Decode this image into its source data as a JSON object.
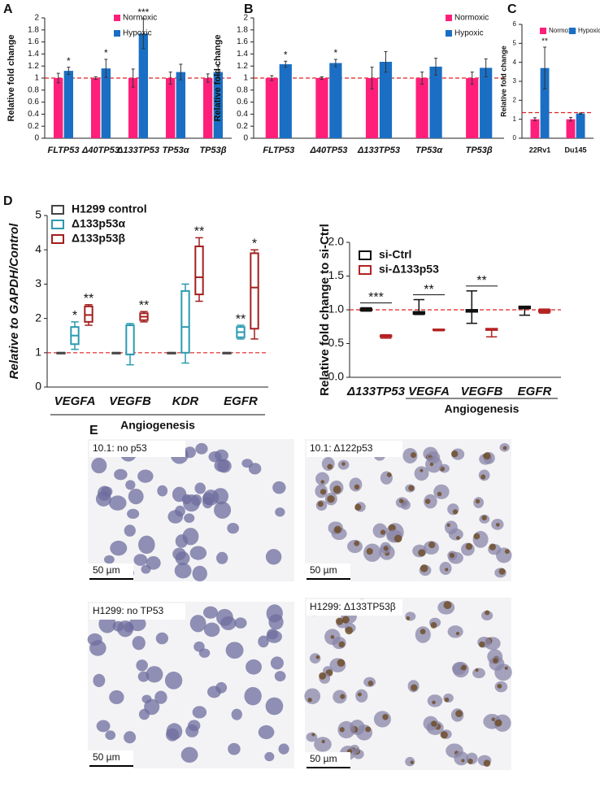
{
  "chart_data": [
    {
      "panel": "A",
      "type": "bar",
      "ylabel": "Relative fold change",
      "categories": [
        "FLTP53",
        "Δ40TP53",
        "Δ133TP53",
        "TP53α",
        "TP53β"
      ],
      "series": [
        {
          "name": "Normoxic",
          "color": "#ff1f7a",
          "values": [
            1,
            1,
            1,
            1,
            1
          ],
          "errors": [
            0.08,
            0.02,
            0.15,
            0.1,
            0.07
          ]
        },
        {
          "name": "Hypoxic",
          "color": "#1a6fc4",
          "values": [
            1.12,
            1.16,
            1.74,
            1.1,
            1.1
          ],
          "errors": [
            0.06,
            0.15,
            0.25,
            0.13,
            0.1
          ],
          "significance": [
            "*",
            "*",
            "***",
            null,
            null
          ]
        }
      ],
      "ylim": [
        0,
        2
      ],
      "yticks": [
        0,
        0.2,
        0.4,
        0.6,
        0.8,
        1,
        1.2,
        1.4,
        1.6,
        1.8,
        2
      ],
      "refline": 1
    },
    {
      "panel": "B",
      "type": "bar",
      "ylabel": "Relative fold change",
      "categories": [
        "FLTP53",
        "Δ40TP53",
        "Δ133TP53",
        "TP53α",
        "TP53β"
      ],
      "series": [
        {
          "name": "Normoxic",
          "color": "#ff1f7a",
          "values": [
            1,
            1,
            1,
            1,
            1
          ],
          "errors": [
            0.04,
            0.02,
            0.18,
            0.1,
            0.1
          ]
        },
        {
          "name": "Hypoxic",
          "color": "#1a6fc4",
          "values": [
            1.23,
            1.25,
            1.27,
            1.19,
            1.17
          ],
          "errors": [
            0.05,
            0.06,
            0.17,
            0.14,
            0.15
          ],
          "significance": [
            "*",
            "*",
            null,
            null,
            null
          ]
        }
      ],
      "ylim": [
        0,
        2
      ],
      "yticks": [
        0,
        0.2,
        0.4,
        0.6,
        0.8,
        1,
        1.2,
        1.4,
        1.6,
        1.8,
        2
      ],
      "refline": 1
    },
    {
      "panel": "C",
      "type": "bar",
      "ylabel": "Relative fold change",
      "categories": [
        "22Rv1",
        "Du145"
      ],
      "series": [
        {
          "name": "Normoxic",
          "color": "#ff1f7a",
          "values": [
            1,
            1
          ],
          "errors": [
            0.08,
            0.1
          ]
        },
        {
          "name": "Hypoxic",
          "color": "#1a6fc4",
          "values": [
            3.7,
            1.3
          ],
          "errors": [
            1.1,
            0.03
          ],
          "significance": [
            "**",
            null
          ]
        }
      ],
      "ylim": [
        0,
        6
      ],
      "yticks": [
        0,
        1,
        2,
        3,
        4,
        5,
        6
      ],
      "refline": 1.35
    },
    {
      "panel": "D",
      "type": "box",
      "ylabel": "Relative to GAPDH/Control",
      "group_label": "Angiogenesis",
      "categories": [
        "VEGFA",
        "VEGFB",
        "KDR",
        "EGFR"
      ],
      "series": [
        {
          "name": "H1299 control",
          "color": "#444444",
          "values": [
            [
              1,
              1,
              1,
              1,
              1
            ],
            [
              1,
              1,
              1,
              1,
              1
            ],
            [
              1,
              1,
              1,
              1,
              1
            ],
            [
              1,
              1,
              1,
              1,
              1
            ]
          ]
        },
        {
          "name": "Δ133p53α",
          "color": "#2a9bb0",
          "values": [
            [
              1.1,
              1.25,
              1.5,
              1.75,
              1.9
            ],
            [
              0.65,
              0.95,
              0.95,
              1.8,
              1.85
            ],
            [
              0.7,
              1.0,
              1.75,
              2.8,
              3.0
            ],
            [
              1.4,
              1.45,
              1.6,
              1.75,
              1.8
            ]
          ],
          "significance": [
            "*",
            null,
            null,
            "**"
          ]
        },
        {
          "name": "Δ133p53β",
          "color": "#a31f1f",
          "values": [
            [
              1.8,
              1.9,
              2.1,
              2.35,
              2.4
            ],
            [
              1.9,
              1.95,
              2.05,
              2.15,
              2.2
            ],
            [
              2.5,
              2.7,
              3.2,
              4.1,
              4.35
            ],
            [
              1.4,
              1.7,
              2.9,
              3.9,
              4.0
            ]
          ],
          "significance": [
            "**",
            "**",
            "**",
            "*"
          ]
        }
      ],
      "ylim": [
        0,
        5
      ],
      "yticks": [
        0,
        1,
        2,
        3,
        4,
        5
      ],
      "refline": 1
    },
    {
      "type": "box",
      "ylabel": "Relative fold change to si-Ctrl",
      "group_label": "Angiogenesis",
      "brackets": true,
      "categories": [
        "Δ133TP53",
        "VEGFA",
        "VEGFB",
        "EGFR"
      ],
      "series": [
        {
          "name": "si-Ctrl",
          "color": "#111111",
          "values": [
            [
              0.98,
              0.99,
              1.0,
              1.02,
              1.03
            ],
            [
              0.93,
              0.94,
              0.95,
              0.97,
              1.15
            ],
            [
              0.8,
              0.97,
              0.98,
              1.0,
              1.28
            ],
            [
              0.92,
              1.02,
              1.03,
              1.05,
              1.05
            ]
          ]
        },
        {
          "name": "si-Δ133p53",
          "color": "#b52222",
          "values": [
            [
              0.58,
              0.6,
              0.61,
              0.62,
              0.63
            ],
            [
              0.69,
              0.7,
              0.7,
              0.71,
              0.71
            ],
            [
              0.6,
              0.7,
              0.71,
              0.72,
              0.72
            ],
            [
              0.95,
              0.97,
              0.98,
              1.0,
              1.01
            ]
          ],
          "significance": [
            "***",
            "**",
            "**",
            null
          ]
        }
      ],
      "ylim": [
        0,
        2
      ],
      "yticks": [
        {
          "value": 0,
          "label": "0.0"
        },
        0.5,
        {
          "value": 1,
          "label": "1.0"
        },
        1.5,
        {
          "value": 2,
          "label": "2.0"
        }
      ],
      "refline": 1
    }
  ],
  "panel_e": {
    "panel": "E",
    "images": [
      {
        "label": "10.1: no p53",
        "scale": "50 µm"
      },
      {
        "label": "10.1: Δ122p53",
        "scale": "50 µm"
      },
      {
        "label": "H1299: no TP53",
        "scale": "50 µm"
      },
      {
        "label": "H1299: Δ133TP53β",
        "scale": "50 µm"
      }
    ]
  }
}
